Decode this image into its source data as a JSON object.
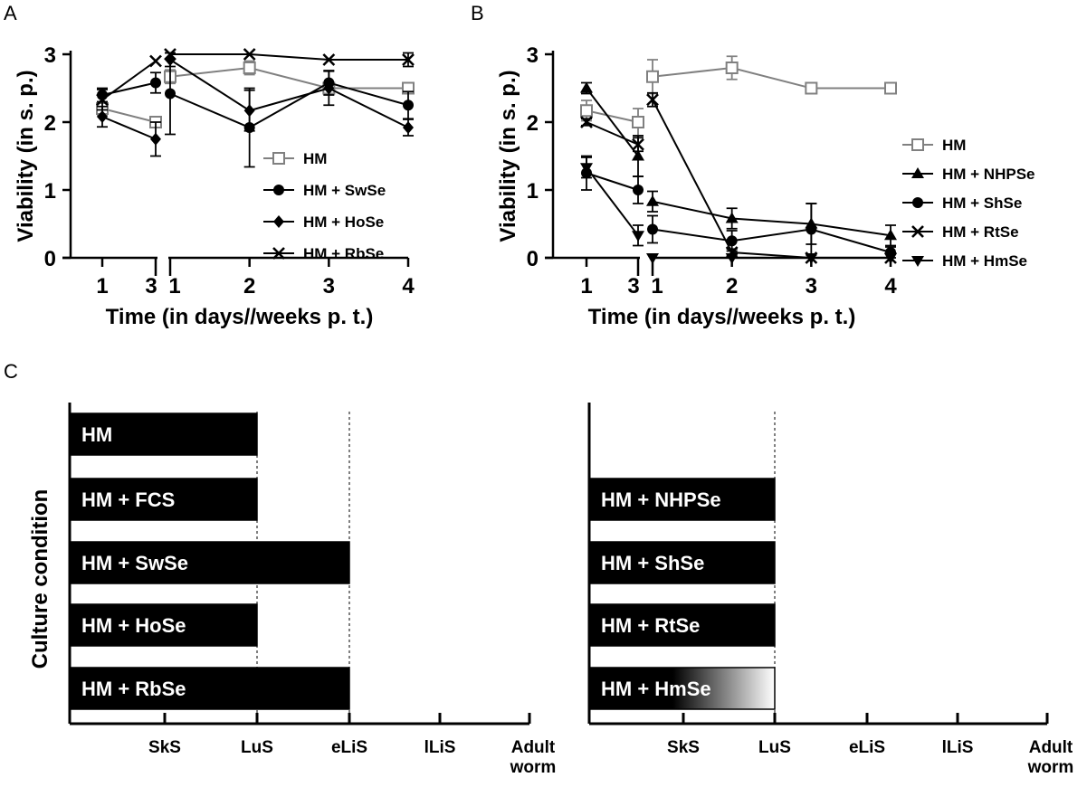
{
  "panel_letters": {
    "a": "A",
    "b": "B",
    "c": "C"
  },
  "chart_data": [
    {
      "type": "line",
      "panel": "A",
      "ylabel": "Viability (in s. p.)",
      "xlabel": "Time (in days//weeks p. t.)",
      "xticks": [
        "1",
        "3",
        "1",
        "2",
        "3",
        "4"
      ],
      "yticks": [
        "0",
        "1",
        "2",
        "3"
      ],
      "ylim": [
        0,
        3
      ],
      "series": [
        {
          "name": "HM",
          "marker": "open-square",
          "color": "#808080",
          "segments": [
            {
              "x": [
                1,
                3
              ],
              "y": [
                2.2,
                2.0
              ],
              "err": [
                0.1,
                0.08
              ]
            },
            {
              "x": [
                1,
                2,
                3,
                4
              ],
              "y": [
                2.67,
                2.8,
                2.5,
                2.5
              ],
              "err": [
                0.1,
                0.1,
                0.04,
                0.04
              ]
            }
          ]
        },
        {
          "name": "HM + SwSe",
          "marker": "filled-circle",
          "color": "#000000",
          "segments": [
            {
              "x": [
                1,
                3
              ],
              "y": [
                2.4,
                2.58
              ],
              "err": [
                0.1,
                0.15
              ]
            },
            {
              "x": [
                1,
                2,
                3,
                4
              ],
              "y": [
                2.42,
                1.92,
                2.58,
                2.25
              ],
              "err": [
                0.6,
                0.58,
                0.18,
                0.2
              ]
            }
          ]
        },
        {
          "name": "HM + HoSe",
          "marker": "filled-diamond",
          "color": "#000000",
          "segments": [
            {
              "x": [
                1,
                3
              ],
              "y": [
                2.08,
                1.75
              ],
              "err": [
                0.15,
                0.25
              ]
            },
            {
              "x": [
                1,
                2,
                3,
                4
              ],
              "y": [
                2.92,
                2.17,
                2.5,
                1.92
              ],
              "err": [
                0.1,
                0.3,
                0.25,
                0.12
              ]
            }
          ]
        },
        {
          "name": "HM + RbSe",
          "marker": "x",
          "color": "#000000",
          "segments": [
            {
              "x": [
                1,
                3
              ],
              "y": [
                2.33,
                2.9
              ],
              "err": [
                0.15,
                0
              ]
            },
            {
              "x": [
                1,
                2,
                3,
                4
              ],
              "y": [
                3.0,
                3.0,
                2.92,
                2.92
              ],
              "err": [
                0,
                0,
                0,
                0.1
              ]
            }
          ]
        }
      ]
    },
    {
      "type": "line",
      "panel": "B",
      "ylabel": "Viability (in s. p.)",
      "xlabel": "Time (in days//weeks p. t.)",
      "xticks": [
        "1",
        "3",
        "1",
        "2",
        "3",
        "4"
      ],
      "yticks": [
        "0",
        "1",
        "2",
        "3"
      ],
      "ylim": [
        0,
        3
      ],
      "series": [
        {
          "name": "HM",
          "marker": "open-square",
          "color": "#808080",
          "segments": [
            {
              "x": [
                1,
                3
              ],
              "y": [
                2.17,
                2.0
              ],
              "err": [
                0.15,
                0.2
              ]
            },
            {
              "x": [
                1,
                2,
                3,
                4
              ],
              "y": [
                2.67,
                2.8,
                2.5,
                2.5
              ],
              "err": [
                0.25,
                0.17,
                0.04,
                0.04
              ]
            }
          ]
        },
        {
          "name": "HM + NHPSe",
          "marker": "filled-triangle-up",
          "color": "#000000",
          "segments": [
            {
              "x": [
                1,
                3
              ],
              "y": [
                2.5,
                1.5
              ],
              "err": [
                0.08,
                0.3
              ]
            },
            {
              "x": [
                1,
                2,
                3,
                4
              ],
              "y": [
                0.83,
                0.58,
                0.5,
                0.33
              ],
              "err": [
                0.15,
                0.15,
                0.3,
                0.15
              ]
            }
          ]
        },
        {
          "name": "HM + ShSe",
          "marker": "filled-circle",
          "color": "#000000",
          "segments": [
            {
              "x": [
                1,
                3
              ],
              "y": [
                1.25,
                1.0
              ],
              "err": [
                0.25,
                0.2
              ]
            },
            {
              "x": [
                1,
                2,
                3,
                4
              ],
              "y": [
                0.42,
                0.25,
                0.42,
                0.08
              ],
              "err": [
                0.2,
                0.15,
                0.38,
                0.08
              ]
            }
          ]
        },
        {
          "name": "HM + RtSe",
          "marker": "x",
          "color": "#000000",
          "segments": [
            {
              "x": [
                1,
                3
              ],
              "y": [
                2.0,
                1.67
              ],
              "err": [
                0.05,
                0.1
              ]
            },
            {
              "x": [
                1,
                2,
                3,
                4
              ],
              "y": [
                2.33,
                0.08,
                0.0,
                0.0
              ],
              "err": [
                0.1,
                0.05,
                0,
                0
              ]
            }
          ]
        },
        {
          "name": "HM + HmSe",
          "marker": "filled-triangle-down",
          "color": "#000000",
          "segments": [
            {
              "x": [
                1,
                3
              ],
              "y": [
                1.33,
                0.33
              ],
              "err": [
                0.15,
                0.15
              ]
            },
            {
              "x": [
                1,
                2,
                3,
                4
              ],
              "y": [
                0.0,
                0.0,
                0.0,
                0.0
              ],
              "err": [
                0,
                0,
                0,
                0
              ]
            }
          ]
        }
      ]
    },
    {
      "type": "bar",
      "panel": "C-left",
      "orientation": "horizontal",
      "ylabel": "Culture condition",
      "stages": [
        "SkS",
        "LuS",
        "eLiS",
        "lLiS",
        "Adult worm"
      ],
      "categories": [
        "HM",
        "HM + FCS",
        "HM + SwSe",
        "HM + HoSe",
        "HM + RbSe"
      ],
      "values_stage_index": [
        2,
        2,
        3,
        2,
        3
      ]
    },
    {
      "type": "bar",
      "panel": "C-right",
      "orientation": "horizontal",
      "stages": [
        "SkS",
        "LuS",
        "eLiS",
        "lLiS",
        "Adult worm"
      ],
      "categories": [
        "HM + NHPSe",
        "HM + ShSe",
        "HM + RtSe",
        "HM + HmSe"
      ],
      "values_stage_index": [
        2,
        2,
        2,
        2
      ],
      "fade_last": true
    }
  ]
}
